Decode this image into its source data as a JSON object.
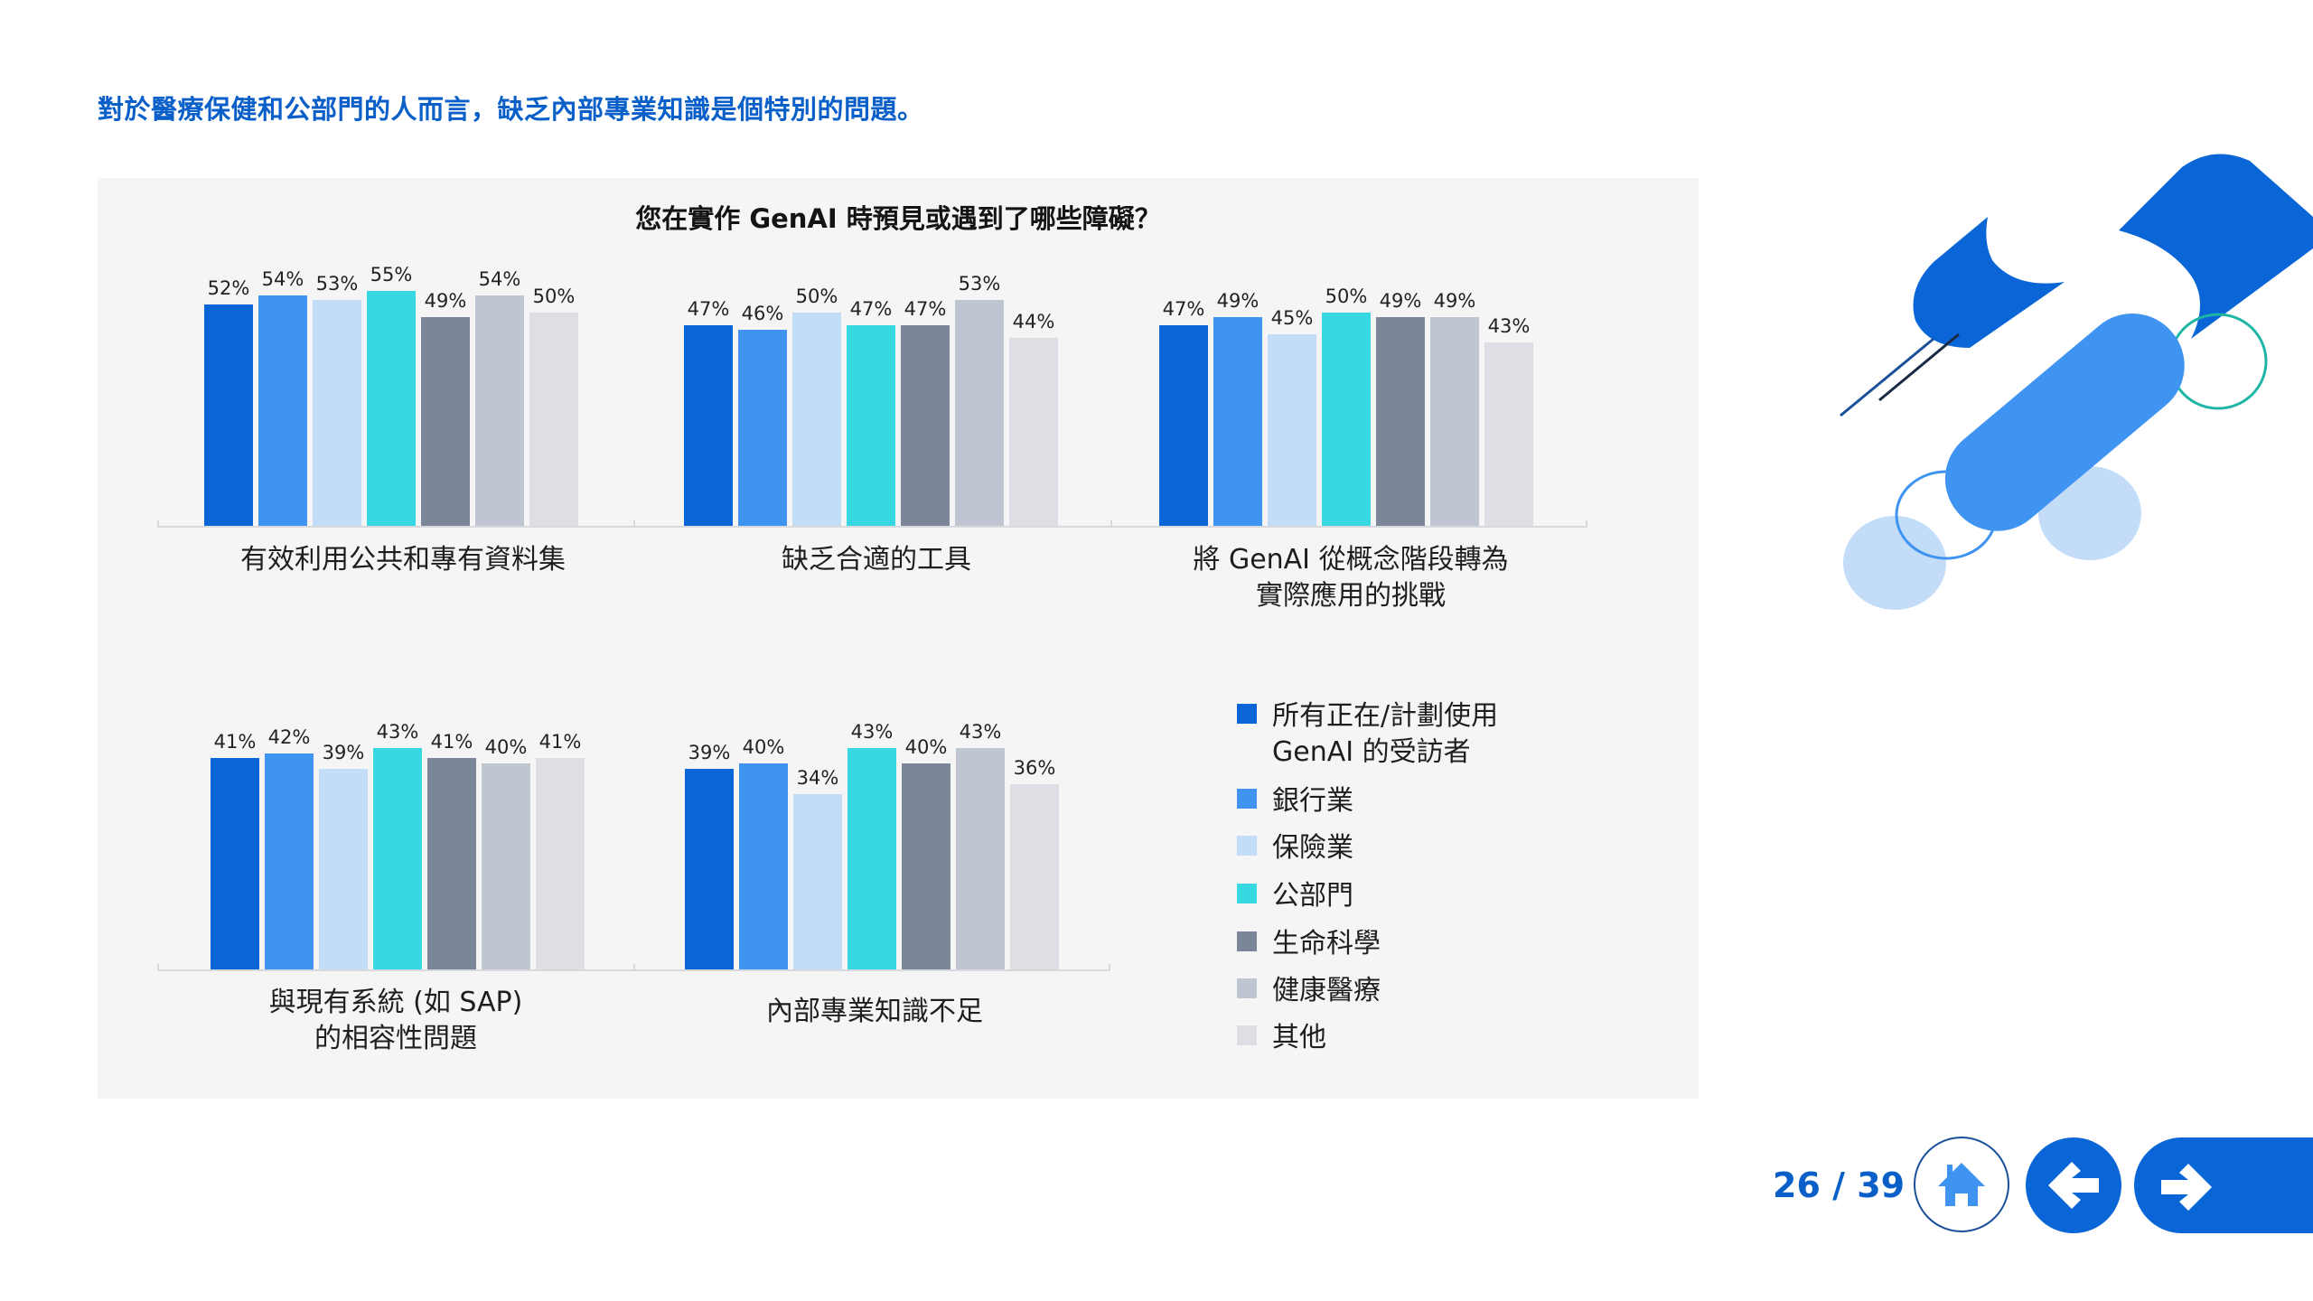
{
  "headline": "對於醫療保健和公部門的人而言，缺乏內部專業知識是個特別的問題。",
  "chart": {
    "title": "您在實作 GenAI 時預見或遇到了哪些障礙？"
  },
  "legend": {
    "items": [
      {
        "label": "所有正在/計劃使用",
        "label2": "GenAI 的受訪者",
        "color": "#0a66d6"
      },
      {
        "label": "銀行業",
        "color": "#3f94f2"
      },
      {
        "label": "保險業",
        "color": "#c3dcf8"
      },
      {
        "label": "公部門",
        "color": "#38d8e3"
      },
      {
        "label": "生命科學",
        "color": "#7b8699"
      },
      {
        "label": "健康醫療",
        "color": "#c0c6d1"
      },
      {
        "label": "其他",
        "color": "#dedfe5"
      }
    ]
  },
  "groups": [
    {
      "line1": "有效利用公共和專有資料集",
      "line2": "",
      "values": [
        "52%",
        "54%",
        "53%",
        "55%",
        "49%",
        "54%",
        "50%"
      ]
    },
    {
      "line1": "缺乏合適的工具",
      "line2": "",
      "values": [
        "47%",
        "46%",
        "50%",
        "47%",
        "47%",
        "53%",
        "44%"
      ]
    },
    {
      "line1": "將 GenAI 從概念階段轉為",
      "line2": "實際應用的挑戰",
      "values": [
        "47%",
        "49%",
        "45%",
        "50%",
        "49%",
        "49%",
        "43%"
      ]
    },
    {
      "line1": "與現有系統 (如 SAP)",
      "line2": "的相容性問題",
      "values": [
        "41%",
        "42%",
        "39%",
        "43%",
        "41%",
        "40%",
        "41%"
      ]
    },
    {
      "line1": "內部專業知識不足",
      "line2": "",
      "values": [
        "39%",
        "40%",
        "34%",
        "43%",
        "40%",
        "43%",
        "36%"
      ]
    }
  ],
  "nav": {
    "page_counter": "26 / 39",
    "home_icon": "home-icon",
    "back_icon": "arrow-left-icon",
    "next_icon": "arrow-right-icon"
  },
  "colors": {
    "accent": "#0a66d6",
    "headline": "#0a5fc8",
    "panel_bg": "#f5f5f6"
  },
  "chart_data": {
    "type": "bar",
    "title": "您在實作 GenAI 時預見或遇到了哪些障礙？",
    "xlabel": "",
    "ylabel": "",
    "ylim": [
      0,
      60
    ],
    "grid": false,
    "legend_position": "right",
    "categories": [
      "有效利用公共和專有資料集",
      "缺乏合適的工具",
      "將 GenAI 從概念階段轉為實際應用的挑戰",
      "與現有系統 (如 SAP) 的相容性問題",
      "內部專業知識不足"
    ],
    "series": [
      {
        "name": "所有正在/計劃使用 GenAI 的受訪者",
        "values": [
          52,
          47,
          47,
          41,
          39
        ]
      },
      {
        "name": "銀行業",
        "values": [
          54,
          46,
          49,
          42,
          40
        ]
      },
      {
        "name": "保險業",
        "values": [
          53,
          50,
          45,
          39,
          34
        ]
      },
      {
        "name": "公部門",
        "values": [
          55,
          47,
          50,
          43,
          43
        ]
      },
      {
        "name": "生命科學",
        "values": [
          49,
          47,
          49,
          41,
          40
        ]
      },
      {
        "name": "健康醫療",
        "values": [
          54,
          53,
          49,
          40,
          43
        ]
      },
      {
        "name": "其他",
        "values": [
          50,
          44,
          43,
          41,
          36
        ]
      }
    ]
  }
}
